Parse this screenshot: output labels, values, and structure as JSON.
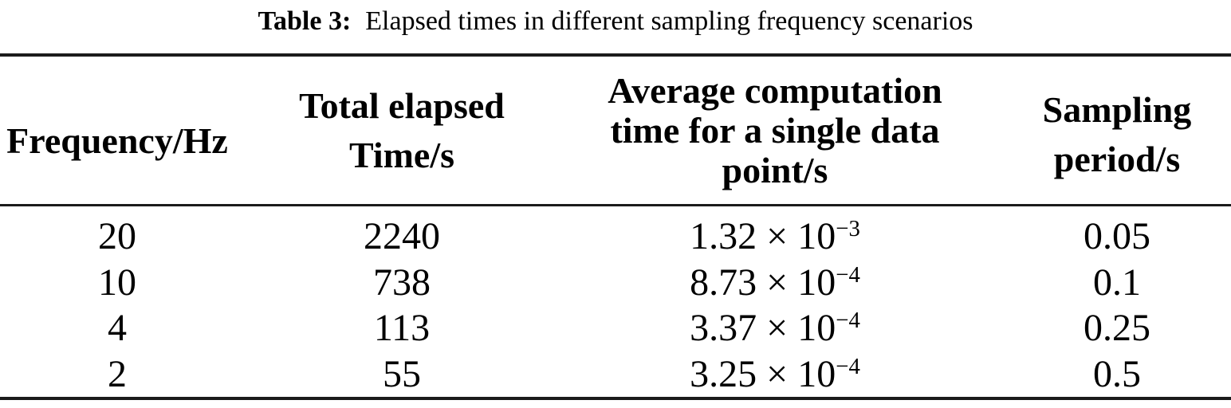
{
  "caption": {
    "label": "Table 3:",
    "text": "Elapsed times in different sampling frequency scenarios"
  },
  "table": {
    "headers": [
      {
        "lines": [
          "Frequency/Hz"
        ]
      },
      {
        "lines": [
          "Total elapsed",
          "Time/s"
        ]
      },
      {
        "lines": [
          "Average computation",
          "time for a single data",
          "point/s"
        ]
      },
      {
        "lines": [
          "Sampling",
          "period/s"
        ]
      }
    ],
    "rows": [
      {
        "frequency": "20",
        "total_time": "2240",
        "avg_base": "1.32 × 10",
        "avg_exp": "−3",
        "period": "0.05"
      },
      {
        "frequency": "10",
        "total_time": "738",
        "avg_base": "8.73 × 10",
        "avg_exp": "−4",
        "period": "0.1"
      },
      {
        "frequency": "4",
        "total_time": "113",
        "avg_base": "3.37 × 10",
        "avg_exp": "−4",
        "period": "0.25"
      },
      {
        "frequency": "2",
        "total_time": "55",
        "avg_base": "3.25 × 10",
        "avg_exp": "−4",
        "period": "0.5"
      }
    ]
  },
  "colors": {
    "text": "#000000",
    "rule": "#1b1b1b",
    "background": "#ffffff"
  },
  "chart_data": {
    "type": "table",
    "title": "Table 3: Elapsed times in different sampling frequency scenarios",
    "columns": [
      "Frequency/Hz",
      "Total elapsed Time/s",
      "Average computation time for a single data point/s",
      "Sampling period/s"
    ],
    "rows": [
      [
        "20",
        "2240",
        "1.32e-3",
        "0.05"
      ],
      [
        "10",
        "738",
        "8.73e-4",
        "0.1"
      ],
      [
        "4",
        "113",
        "3.37e-4",
        "0.25"
      ],
      [
        "2",
        "55",
        "3.25e-4",
        "0.5"
      ]
    ]
  }
}
